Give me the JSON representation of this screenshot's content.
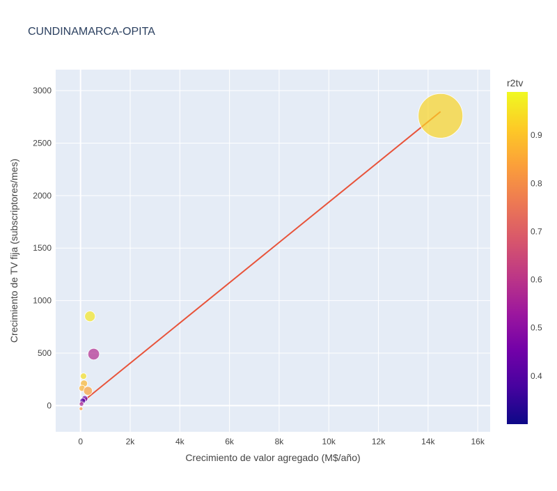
{
  "chart_data": {
    "type": "scatter",
    "title": "CUNDINAMARCA-OPITA",
    "xlabel": "Crecimiento de valor agregado (M$/año)",
    "ylabel": "Crecimiento de TV fija (subscriptores/mes)",
    "xlim": [
      -1000,
      16500
    ],
    "ylim": [
      -250,
      3200
    ],
    "x_ticks": [
      0,
      2000,
      4000,
      6000,
      8000,
      10000,
      12000,
      14000,
      16000
    ],
    "x_tick_labels": [
      "0",
      "2k",
      "4k",
      "6k",
      "8k",
      "10k",
      "12k",
      "14k",
      "16k"
    ],
    "y_ticks": [
      0,
      500,
      1000,
      1500,
      2000,
      2500,
      3000
    ],
    "y_tick_labels": [
      "0",
      "500",
      "1000",
      "1500",
      "2000",
      "2500",
      "3000"
    ],
    "grid": true,
    "colorbar": {
      "title": "r2tv",
      "min": 0.3,
      "max": 0.99,
      "ticks": [
        0.4,
        0.5,
        0.6,
        0.7,
        0.8,
        0.9
      ],
      "tick_labels": [
        "0.4",
        "0.5",
        "0.6",
        "0.7",
        "0.8",
        "0.9"
      ]
    },
    "points": [
      {
        "x": 14500,
        "y": 2760,
        "size": 9000,
        "r2tv": 0.93
      },
      {
        "x": 380,
        "y": 850,
        "size": 500,
        "r2tv": 0.96
      },
      {
        "x": 530,
        "y": 490,
        "size": 600,
        "r2tv": 0.58
      },
      {
        "x": 120,
        "y": 280,
        "size": 180,
        "r2tv": 0.95
      },
      {
        "x": 140,
        "y": 210,
        "size": 220,
        "r2tv": 0.88
      },
      {
        "x": 60,
        "y": 165,
        "size": 170,
        "r2tv": 0.87
      },
      {
        "x": 300,
        "y": 140,
        "size": 350,
        "r2tv": 0.84
      },
      {
        "x": 170,
        "y": 65,
        "size": 170,
        "r2tv": 0.45
      },
      {
        "x": 90,
        "y": 45,
        "size": 140,
        "r2tv": 0.4
      },
      {
        "x": 40,
        "y": 15,
        "size": 90,
        "r2tv": 0.55
      },
      {
        "x": 20,
        "y": -30,
        "size": 60,
        "r2tv": 0.82
      }
    ],
    "trendline": {
      "x": [
        0,
        14500
      ],
      "y": [
        20,
        2800
      ],
      "color": "#e8533a"
    },
    "colors": {
      "plot_bg": "#e5ecf6",
      "grid": "#ffffff",
      "text": "#444444",
      "title": "#2a3f5f"
    }
  }
}
